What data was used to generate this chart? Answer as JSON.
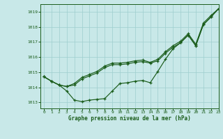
{
  "xlabel": "Graphe pression niveau de la mer (hPa)",
  "bg_color": "#c8e8e8",
  "line_color": "#1a5c1a",
  "grid_color": "#9ecece",
  "ylim": [
    1012.6,
    1019.5
  ],
  "xlim": [
    -0.5,
    23
  ],
  "yticks": [
    1013,
    1014,
    1015,
    1016,
    1017,
    1018,
    1019
  ],
  "xticks": [
    0,
    1,
    2,
    3,
    4,
    5,
    6,
    7,
    8,
    9,
    10,
    11,
    12,
    13,
    14,
    15,
    16,
    17,
    18,
    19,
    20,
    21,
    22,
    23
  ],
  "series_bottom": [
    1014.7,
    1014.4,
    1014.15,
    1013.75,
    1013.15,
    1013.05,
    1013.15,
    1013.2,
    1013.25,
    1013.75,
    1014.25,
    1014.3,
    1014.4,
    1014.45,
    1014.3,
    1015.05,
    1015.85,
    1016.55,
    1016.95,
    1017.45,
    1016.75,
    1018.15,
    1018.65,
    1019.2
  ],
  "series_mid": [
    1014.7,
    1014.4,
    1014.15,
    1014.05,
    1014.15,
    1014.55,
    1014.75,
    1014.95,
    1015.3,
    1015.5,
    1015.5,
    1015.55,
    1015.65,
    1015.7,
    1015.6,
    1015.75,
    1016.25,
    1016.65,
    1016.95,
    1017.45,
    1016.75,
    1018.15,
    1018.65,
    1019.2
  ],
  "series_top": [
    1014.7,
    1014.4,
    1014.15,
    1014.05,
    1014.25,
    1014.65,
    1014.85,
    1015.05,
    1015.4,
    1015.6,
    1015.6,
    1015.65,
    1015.75,
    1015.8,
    1015.65,
    1015.85,
    1016.35,
    1016.75,
    1017.05,
    1017.55,
    1016.85,
    1018.25,
    1018.75,
    1019.2
  ]
}
